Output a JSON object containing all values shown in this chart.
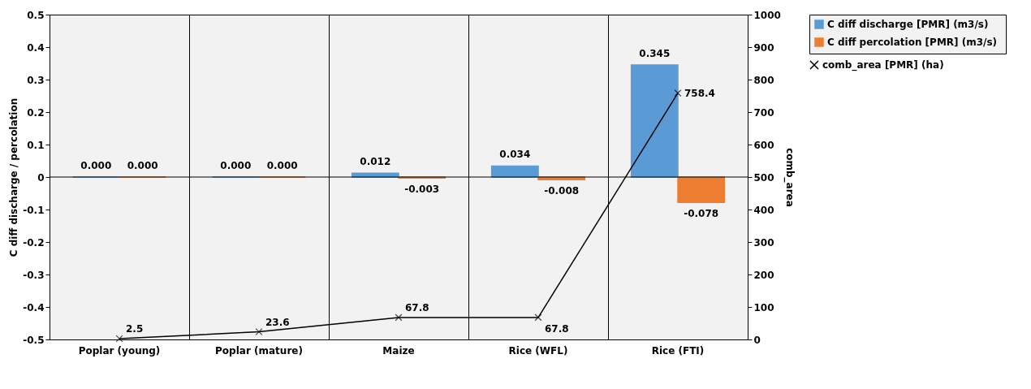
{
  "chart_data": {
    "type": "bar",
    "categories": [
      "Poplar (young)",
      "Poplar (mature)",
      "Maize",
      "Rice (WFL)",
      "Rice (FTI)"
    ],
    "ylabel": "C diff discharge / percolation",
    "y2label": "comb_area",
    "ylim": [
      -0.5,
      0.5
    ],
    "yticks": [
      -0.5,
      -0.4,
      -0.3,
      -0.2,
      -0.1,
      0,
      0.1,
      0.2,
      0.3,
      0.4,
      0.5
    ],
    "y2lim": [
      0,
      1000
    ],
    "y2ticks": [
      0,
      100,
      200,
      300,
      400,
      500,
      600,
      700,
      800,
      900,
      1000
    ],
    "grid": "x",
    "legend": "right",
    "ref_lines": [
      {
        "axis": "y",
        "value": 0
      }
    ],
    "series": [
      {
        "name": "C diff discharge  [PMR] (m3/s)",
        "color": "#5b9bd5",
        "values": [
          0.0,
          0.0,
          0.012,
          0.034,
          0.345
        ],
        "value_labels": [
          "0.000",
          "0.000",
          "0.012",
          "0.034",
          "0.345"
        ]
      },
      {
        "name": "C diff percolation  [PMR] (m3/s)",
        "color": "#ed7d31",
        "values": [
          0.0,
          0.0,
          -0.003,
          -0.008,
          -0.078
        ],
        "value_labels": [
          "0.000",
          "0.000",
          "-0.003",
          "-0.008",
          "-0.078"
        ]
      },
      {
        "name": "comb_area [PMR] (ha)",
        "type": "line",
        "axis": "y2",
        "color": "#000000",
        "marker": "cross",
        "values": [
          2.5,
          23.6,
          67.8,
          67.8,
          758.4
        ],
        "value_labels": [
          "2.5",
          "23.6",
          "67.8",
          "67.8",
          "758.4"
        ]
      }
    ]
  }
}
